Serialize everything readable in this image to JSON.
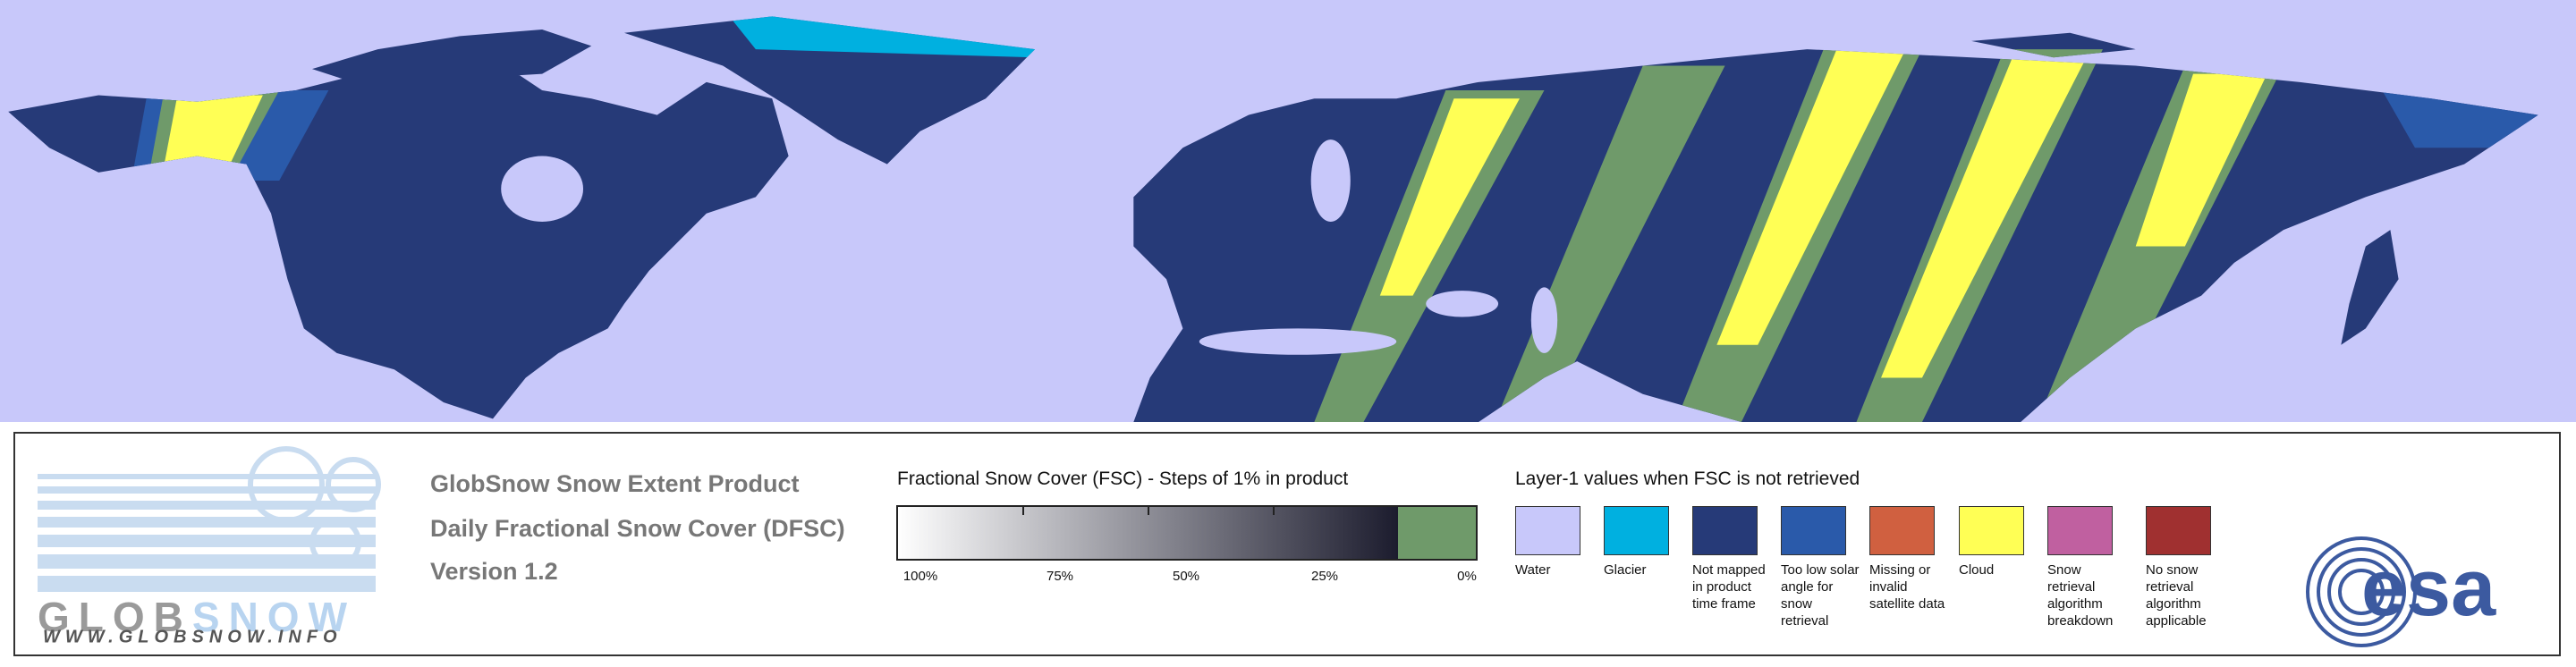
{
  "logo": {
    "text_gray": "GLOB",
    "text_blue": "SNOW",
    "url": "WWW.GLOBSNOW.INFO"
  },
  "header": {
    "title": "GlobSnow Snow Extent Product",
    "subtitle": "Daily Fractional Snow Cover (DFSC)",
    "version": "Version 1.2"
  },
  "colorbar": {
    "title": "Fractional Snow Cover (FSC) - Steps of 1% in product",
    "color_high": "#ffffff",
    "color_low": "#1c1c2e",
    "zero_color": "#6f9a6a",
    "tick_labels": [
      "100%",
      "75%",
      "50%",
      "25%",
      "0%"
    ]
  },
  "legend": {
    "title": "Layer-1 values when FSC is not retrieved",
    "items": [
      {
        "label": "Water",
        "color": "#c8c8fa"
      },
      {
        "label": "Glacier",
        "color": "#00b0e0"
      },
      {
        "label": "Not mapped in product time frame",
        "color": "#263a78"
      },
      {
        "label": "Too low solar angle for snow retrieval",
        "color": "#2a5aaa"
      },
      {
        "label": "Missing or invalid satellite data",
        "color": "#d06040"
      },
      {
        "label": "Cloud",
        "color": "#ffff55"
      },
      {
        "label": "Snow retrieval algorithm breakdown",
        "color": "#c060a0"
      },
      {
        "label": "No snow retrieval algorithm applicable",
        "color": "#a03030"
      }
    ]
  },
  "esa_logo": {
    "text": "esa"
  }
}
